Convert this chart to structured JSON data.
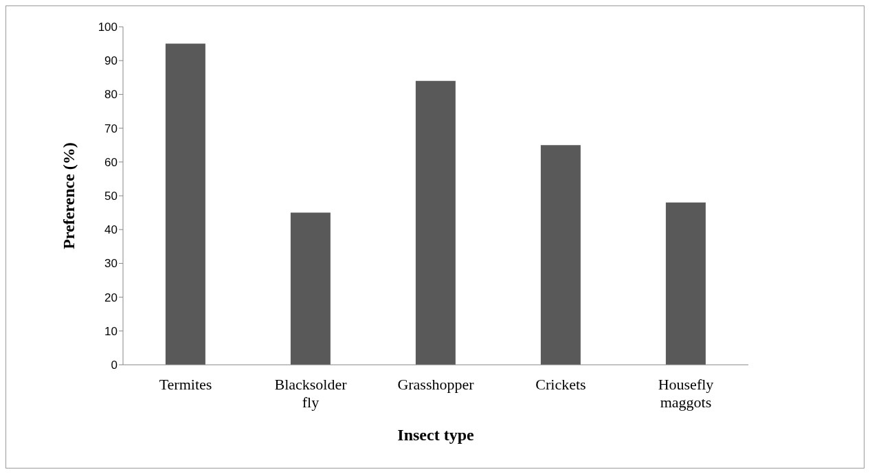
{
  "chart_data": {
    "type": "bar",
    "xlabel": "Insect type",
    "ylabel": "Preference (%)",
    "categories": [
      "Termites",
      "Blacksolder fly",
      "Grasshopper",
      "Crickets",
      "Housefly maggots"
    ],
    "values": [
      95,
      45,
      84,
      65,
      48
    ],
    "color": "#595959",
    "ylim": [
      0,
      100
    ],
    "yticks": [
      0,
      10,
      20,
      30,
      40,
      50,
      60,
      70,
      80,
      90,
      100
    ],
    "grid": false
  }
}
